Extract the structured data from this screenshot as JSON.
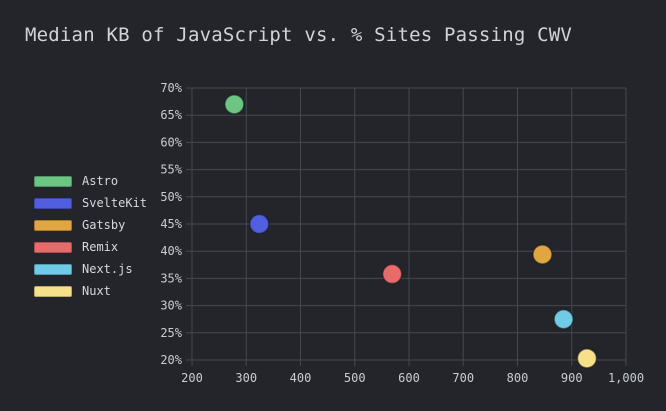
{
  "chart_data": {
    "type": "scatter",
    "title": "Median KB of JavaScript vs. % Sites Passing CWV",
    "xlabel": "",
    "ylabel": "",
    "xlim": [
      200,
      1000
    ],
    "ylim": [
      20,
      70
    ],
    "xticks": [
      200,
      300,
      400,
      500,
      600,
      700,
      800,
      900,
      1000
    ],
    "xtick_labels": [
      "200",
      "300",
      "400",
      "500",
      "600",
      "700",
      "800",
      "900",
      "1,000"
    ],
    "yticks": [
      20,
      25,
      30,
      35,
      40,
      45,
      50,
      55,
      60,
      65,
      70
    ],
    "ytick_labels": [
      "20%",
      "25%",
      "30%",
      "35%",
      "40%",
      "45%",
      "50%",
      "55%",
      "60%",
      "65%",
      "70%"
    ],
    "grid": true,
    "legend_position": "left",
    "series": [
      {
        "name": "Astro",
        "color": "#6cc583",
        "x": 278,
        "y": 67
      },
      {
        "name": "SvelteKit",
        "color": "#4f5fe0",
        "x": 324,
        "y": 45
      },
      {
        "name": "Gatsby",
        "color": "#e1a541",
        "x": 846,
        "y": 39.4
      },
      {
        "name": "Remix",
        "color": "#e86b6b",
        "x": 569,
        "y": 35.8
      },
      {
        "name": "Next.js",
        "color": "#6fcbe6",
        "x": 885,
        "y": 27.5
      },
      {
        "name": "Nuxt",
        "color": "#f7e08a",
        "x": 928,
        "y": 20.3
      }
    ]
  }
}
